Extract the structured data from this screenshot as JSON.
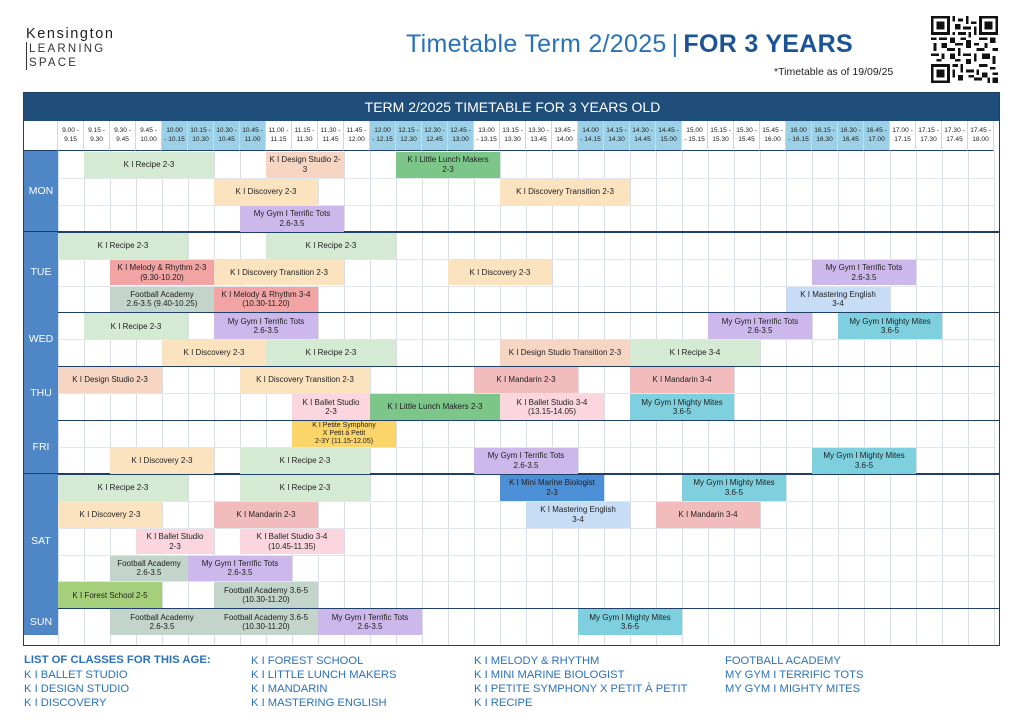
{
  "header": {
    "logo": [
      "Kensington",
      "LEARNING",
      "SPACE"
    ],
    "title_main": "Timetable Term 2/2025",
    "title_sep": "|",
    "title_bold": "FOR 3 YEARS",
    "as_of": "*Timetable as of 19/09/25"
  },
  "banner": "TERM 2/2025 TIMETABLE FOR 3 YEARS OLD",
  "timeslots": [
    [
      "9.00 -",
      "9.15"
    ],
    [
      "9.15 -",
      "9.30"
    ],
    [
      "9.30 -",
      "9.45"
    ],
    [
      "9.45 -",
      "10.00"
    ],
    [
      "10.00",
      "- 10.15"
    ],
    [
      "10.15 -",
      "10.30"
    ],
    [
      "10.30 -",
      "10.45"
    ],
    [
      "10.45 -",
      "11.00"
    ],
    [
      "11.00 -",
      "11.15"
    ],
    [
      "11.15 -",
      "11.30"
    ],
    [
      "11.30 -",
      "11.45"
    ],
    [
      "11.45 -",
      "12.00"
    ],
    [
      "12.00",
      "- 12.15"
    ],
    [
      "12.15 -",
      "12.30"
    ],
    [
      "12.30 -",
      "12.45"
    ],
    [
      "12.45 -",
      "13.00"
    ],
    [
      "13.00",
      "- 13.15"
    ],
    [
      "13.15 -",
      "13.30"
    ],
    [
      "13.30 -",
      "13.45"
    ],
    [
      "13.45 -",
      "14.00"
    ],
    [
      "14.00",
      "- 14.15"
    ],
    [
      "14.15 -",
      "14.30"
    ],
    [
      "14.30 -",
      "14.45"
    ],
    [
      "14.45 -",
      "15.00"
    ],
    [
      "15.00",
      "- 15.15"
    ],
    [
      "15.15 -",
      "15.30"
    ],
    [
      "15.30 -",
      "15.45"
    ],
    [
      "15.45 -",
      "16.00"
    ],
    [
      "16.00",
      "- 16.15"
    ],
    [
      "16.15 -",
      "16.30"
    ],
    [
      "16.30 -",
      "16.45"
    ],
    [
      "16.45 -",
      "17.00"
    ],
    [
      "17.00 -",
      "17.15"
    ],
    [
      "17.15 -",
      "17.30"
    ],
    [
      "17.30 -",
      "17.45"
    ],
    [
      "17.45 -",
      "18.00"
    ]
  ],
  "days": [
    {
      "name": "MON",
      "rows": 3
    },
    {
      "name": "TUE",
      "rows": 3
    },
    {
      "name": "WED",
      "rows": 2
    },
    {
      "name": "THU",
      "rows": 2
    },
    {
      "name": "FRI",
      "rows": 2
    },
    {
      "name": "SAT",
      "rows": 5
    },
    {
      "name": "SUN",
      "rows": 1
    }
  ],
  "classes": [
    {
      "day": 0,
      "row": 0,
      "start": 1,
      "span": 5,
      "lines": [
        "K I Recipe 2-3"
      ],
      "color": "#d5ead3"
    },
    {
      "day": 0,
      "row": 0,
      "start": 8,
      "span": 3,
      "lines": [
        "K I Design Studio 2-3"
      ],
      "color": "#f6d5c3"
    },
    {
      "day": 0,
      "row": 0,
      "start": 13,
      "span": 4,
      "lines": [
        "K I Little Lunch Makers",
        "2-3"
      ],
      "color": "#7cc68a"
    },
    {
      "day": 0,
      "row": 1,
      "start": 6,
      "span": 4,
      "lines": [
        "K I Discovery 2-3"
      ],
      "color": "#fbe3c0"
    },
    {
      "day": 0,
      "row": 1,
      "start": 17,
      "span": 5,
      "lines": [
        "K I Discovery Transition 2-3"
      ],
      "color": "#fbe3c0"
    },
    {
      "day": 0,
      "row": 2,
      "start": 7,
      "span": 4,
      "lines": [
        "My Gym I Terrific Tots",
        "2.6-3.5"
      ],
      "color": "#cdb8ec"
    },
    {
      "day": 1,
      "row": 0,
      "start": 0,
      "span": 5,
      "lines": [
        "K I Recipe 2-3"
      ],
      "color": "#d5ead3"
    },
    {
      "day": 1,
      "row": 0,
      "start": 8,
      "span": 5,
      "lines": [
        "K I Recipe 2-3"
      ],
      "color": "#d5ead3"
    },
    {
      "day": 1,
      "row": 1,
      "start": 2,
      "span": 4,
      "lines": [
        "K I Melody & Rhythm 2-3",
        "(9.30-10.20)"
      ],
      "color": "#f2a3a3"
    },
    {
      "day": 1,
      "row": 1,
      "start": 6,
      "span": 5,
      "lines": [
        "K I Discovery Transition 2-3"
      ],
      "color": "#fbe3c0"
    },
    {
      "day": 1,
      "row": 1,
      "start": 15,
      "span": 4,
      "lines": [
        "K I Discovery 2-3"
      ],
      "color": "#fbe3c0"
    },
    {
      "day": 1,
      "row": 1,
      "start": 29,
      "span": 4,
      "lines": [
        "My Gym I Terrific Tots",
        "2.6-3.5"
      ],
      "color": "#cdb8ec"
    },
    {
      "day": 1,
      "row": 2,
      "start": 2,
      "span": 4,
      "lines": [
        "Football Academy",
        "2.6-3.5 (9.40-10.25)"
      ],
      "color": "#c3d4cb"
    },
    {
      "day": 1,
      "row": 2,
      "start": 6,
      "span": 4,
      "lines": [
        "K I Melody & Rhythm 3-4",
        "(10.30-11.20)"
      ],
      "color": "#f2a3a3"
    },
    {
      "day": 1,
      "row": 2,
      "start": 28,
      "span": 4,
      "lines": [
        "K I Mastering English",
        "3-4"
      ],
      "color": "#c7ddf5"
    },
    {
      "day": 2,
      "row": 0,
      "start": 1,
      "span": 4,
      "lines": [
        "K I Recipe 2-3"
      ],
      "color": "#d5ead3"
    },
    {
      "day": 2,
      "row": 0,
      "start": 6,
      "span": 4,
      "lines": [
        "My Gym I Terrific Tots",
        "2.6-3.5"
      ],
      "color": "#cdb8ec"
    },
    {
      "day": 2,
      "row": 0,
      "start": 25,
      "span": 4,
      "lines": [
        "My Gym I Terrific Tots",
        "2.6-3.5"
      ],
      "color": "#cdb8ec"
    },
    {
      "day": 2,
      "row": 0,
      "start": 30,
      "span": 4,
      "lines": [
        "My Gym I Mighty Mites",
        "3.6-5"
      ],
      "color": "#7fd0de"
    },
    {
      "day": 2,
      "row": 1,
      "start": 4,
      "span": 4,
      "lines": [
        "K I Discovery 2-3"
      ],
      "color": "#fbe3c0"
    },
    {
      "day": 2,
      "row": 1,
      "start": 8,
      "span": 5,
      "lines": [
        "K I Recipe 2-3"
      ],
      "color": "#d5ead3"
    },
    {
      "day": 2,
      "row": 1,
      "start": 17,
      "span": 5,
      "lines": [
        "K I Design Studio Transition 2-3"
      ],
      "color": "#f6d5c3"
    },
    {
      "day": 2,
      "row": 1,
      "start": 22,
      "span": 5,
      "lines": [
        "K I Recipe 3-4"
      ],
      "color": "#d5ead3"
    },
    {
      "day": 3,
      "row": 0,
      "start": 0,
      "span": 4,
      "lines": [
        "K I Design Studio 2-3"
      ],
      "color": "#f6d5c3"
    },
    {
      "day": 3,
      "row": 0,
      "start": 7,
      "span": 5,
      "lines": [
        "K I Discovery Transition 2-3"
      ],
      "color": "#fbe3c0"
    },
    {
      "day": 3,
      "row": 0,
      "start": 16,
      "span": 4,
      "lines": [
        "K I Mandarin 2-3"
      ],
      "color": "#f2bcbc"
    },
    {
      "day": 3,
      "row": 0,
      "start": 22,
      "span": 4,
      "lines": [
        "K I Mandarin 3-4"
      ],
      "color": "#f2bcbc"
    },
    {
      "day": 3,
      "row": 1,
      "start": 9,
      "span": 3,
      "lines": [
        "K I Ballet Studio",
        "2-3"
      ],
      "color": "#fbd6de"
    },
    {
      "day": 3,
      "row": 1,
      "start": 12,
      "span": 5,
      "lines": [
        "K I Little Lunch Makers 2-3"
      ],
      "color": "#7cc68a"
    },
    {
      "day": 3,
      "row": 1,
      "start": 17,
      "span": 4,
      "lines": [
        "K I Ballet Studio 3-4",
        "(13.15-14.05)"
      ],
      "color": "#fbd6de"
    },
    {
      "day": 3,
      "row": 1,
      "start": 22,
      "span": 4,
      "lines": [
        "My Gym I Mighty Mites",
        "3.6-5"
      ],
      "color": "#7fd0de"
    },
    {
      "day": 4,
      "row": 0,
      "start": 9,
      "span": 4,
      "lines": [
        "K I Petite Symphony",
        "X Petit à Petit",
        "2-3Y (11.15-12.05)"
      ],
      "color": "#fbd46a"
    },
    {
      "day": 4,
      "row": 1,
      "start": 2,
      "span": 4,
      "lines": [
        "K I Discovery 2-3"
      ],
      "color": "#fbe3c0"
    },
    {
      "day": 4,
      "row": 1,
      "start": 7,
      "span": 5,
      "lines": [
        "K I Recipe 2-3"
      ],
      "color": "#d5ead3"
    },
    {
      "day": 4,
      "row": 1,
      "start": 16,
      "span": 4,
      "lines": [
        "My Gym I Terrific Tots",
        "2.6-3.5"
      ],
      "color": "#cdb8ec"
    },
    {
      "day": 4,
      "row": 1,
      "start": 29,
      "span": 4,
      "lines": [
        "My Gym I Mighty Mites",
        "3.6-5"
      ],
      "color": "#7fd0de"
    },
    {
      "day": 5,
      "row": 0,
      "start": 0,
      "span": 5,
      "lines": [
        "K I Recipe 2-3"
      ],
      "color": "#d5ead3"
    },
    {
      "day": 5,
      "row": 0,
      "start": 7,
      "span": 5,
      "lines": [
        "K I Recipe 2-3"
      ],
      "color": "#d5ead3"
    },
    {
      "day": 5,
      "row": 0,
      "start": 17,
      "span": 4,
      "lines": [
        "K I Mini Marine Biologist",
        "2-3"
      ],
      "color": "#4b8fd6"
    },
    {
      "day": 5,
      "row": 0,
      "start": 24,
      "span": 4,
      "lines": [
        "My Gym I Mighty Mites",
        "3.6-5"
      ],
      "color": "#7fd0de"
    },
    {
      "day": 5,
      "row": 1,
      "start": 0,
      "span": 4,
      "lines": [
        "K I Discovery 2-3"
      ],
      "color": "#fbe3c0"
    },
    {
      "day": 5,
      "row": 1,
      "start": 6,
      "span": 4,
      "lines": [
        "K I Mandarin 2-3"
      ],
      "color": "#f2bcbc"
    },
    {
      "day": 5,
      "row": 1,
      "start": 18,
      "span": 4,
      "lines": [
        "K I Mastering English",
        "3-4"
      ],
      "color": "#c7ddf5"
    },
    {
      "day": 5,
      "row": 1,
      "start": 23,
      "span": 4,
      "lines": [
        "K I Mandarin 3-4"
      ],
      "color": "#f2bcbc"
    },
    {
      "day": 5,
      "row": 2,
      "start": 3,
      "span": 3,
      "lines": [
        "K I Ballet Studio",
        "2-3"
      ],
      "color": "#fbd6de"
    },
    {
      "day": 5,
      "row": 2,
      "start": 7,
      "span": 4,
      "lines": [
        "K I Ballet Studio 3-4",
        "(10.45-11.35)"
      ],
      "color": "#fbd6de"
    },
    {
      "day": 5,
      "row": 3,
      "start": 2,
      "span": 3,
      "lines": [
        "Football Academy",
        "2.6-3.5"
      ],
      "color": "#c3d4cb"
    },
    {
      "day": 5,
      "row": 3,
      "start": 5,
      "span": 4,
      "lines": [
        "My Gym I Terrific Tots",
        "2.6-3.5"
      ],
      "color": "#cdb8ec"
    },
    {
      "day": 5,
      "row": 4,
      "start": 0,
      "span": 4,
      "lines": [
        "K I Forest School 2-5"
      ],
      "color": "#a5cf7a"
    },
    {
      "day": 5,
      "row": 4,
      "start": 6,
      "span": 4,
      "lines": [
        "Football Academy 3.6-5",
        "(10.30-11.20)"
      ],
      "color": "#c3d4cb"
    },
    {
      "day": 6,
      "row": 0,
      "start": 2,
      "span": 4,
      "lines": [
        "Football Academy",
        "2.6-3.5"
      ],
      "color": "#c3d4cb"
    },
    {
      "day": 6,
      "row": 0,
      "start": 6,
      "span": 4,
      "lines": [
        "Football Academy 3.6-5",
        "(10.30-11.20)"
      ],
      "color": "#c3d4cb"
    },
    {
      "day": 6,
      "row": 0,
      "start": 10,
      "span": 4,
      "lines": [
        "My Gym I Terrific Tots",
        "2.6-3.5"
      ],
      "color": "#cdb8ec"
    },
    {
      "day": 6,
      "row": 0,
      "start": 20,
      "span": 4,
      "lines": [
        "My Gym I Mighty Mites",
        "3.6-5"
      ],
      "color": "#7fd0de"
    }
  ],
  "class_list": {
    "heading": "LIST OF CLASSES FOR THIS AGE:",
    "col1": [
      "K I BALLET STUDIO",
      "K I DESIGN STUDIO",
      "K I DISCOVERY"
    ],
    "col2": [
      "K I FOREST SCHOOL",
      "K I LITTLE LUNCH MAKERS",
      "K I MANDARIN",
      "K I MASTERING ENGLISH"
    ],
    "col3": [
      "K I MELODY & RHYTHM",
      "K I MINI MARINE BIOLOGIST",
      "K I PETITE SYMPHONY X PETIT À PETIT",
      "K I RECIPE"
    ],
    "col4": [
      "FOOTBALL ACADEMY",
      "MY GYM I TERRIFIC TOTS",
      "MY GYM I MIGHTY MITES"
    ]
  },
  "colors": {
    "day_label": "#4e86c6",
    "banner": "#1f4e7a",
    "title": "#2a72b8"
  }
}
